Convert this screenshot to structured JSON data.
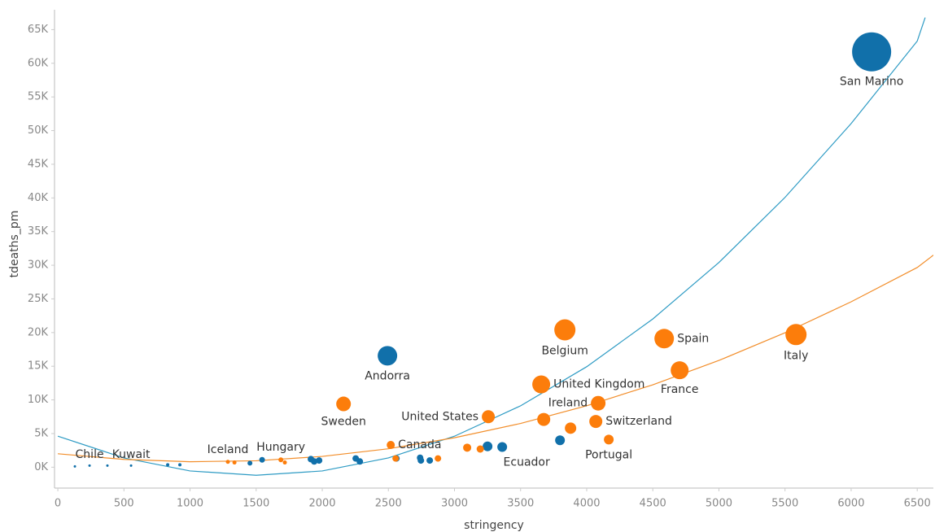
{
  "chart_data": {
    "type": "scatter",
    "xlabel": "stringency",
    "ylabel": "tdeaths_pm",
    "xlim": [
      -25,
      6622
    ],
    "ylim": [
      -3100,
      67950
    ],
    "xticks": [
      0,
      500,
      1000,
      1500,
      2000,
      2500,
      3000,
      3500,
      4000,
      4500,
      5000,
      5500,
      6000,
      6500
    ],
    "yticks": [
      {
        "value": 0,
        "label": "0K"
      },
      {
        "value": 5000,
        "label": "5K"
      },
      {
        "value": 10000,
        "label": "10K"
      },
      {
        "value": 15000,
        "label": "15K"
      },
      {
        "value": 20000,
        "label": "20K"
      },
      {
        "value": 25000,
        "label": "25K"
      },
      {
        "value": 30000,
        "label": "30K"
      },
      {
        "value": 35000,
        "label": "35K"
      },
      {
        "value": 40000,
        "label": "40K"
      },
      {
        "value": 45000,
        "label": "45K"
      },
      {
        "value": 50000,
        "label": "50K"
      },
      {
        "value": 55000,
        "label": "55K"
      },
      {
        "value": 60000,
        "label": "60K"
      },
      {
        "value": 65000,
        "label": "65K"
      }
    ],
    "trendlines": [
      {
        "color": "#2e9bc4",
        "x": [
          0,
          500,
          1000,
          1500,
          2000,
          2500,
          3000,
          3500,
          4000,
          4500,
          5000,
          5500,
          6000,
          6500,
          6560
        ],
        "y": [
          4605,
          1380,
          -555,
          -1200,
          -555,
          1380,
          4605,
          9120,
          14925,
          22020,
          30405,
          40080,
          51045,
          63300,
          66800
        ]
      },
      {
        "color": "#f28e2b",
        "x": [
          0,
          500,
          1000,
          1500,
          2000,
          2500,
          3000,
          3500,
          4000,
          4500,
          5000,
          5500,
          6000,
          6500,
          6622
        ],
        "y": [
          2000,
          1156,
          810,
          958,
          1602,
          2740,
          4374,
          6502,
          9126,
          12244,
          15858,
          19966,
          24570,
          29668,
          31500
        ]
      }
    ],
    "series": [
      {
        "color": "#1170aa",
        "x": [
          6155,
          2493,
          3798,
          3361,
          3250,
          2813,
          2740,
          2746,
          2561,
          2284,
          2253,
          1976,
          1939,
          1914,
          1545,
          1453,
          923,
          831,
          554,
          375,
          240,
          129
        ],
        "y": [
          61700,
          16550,
          4000,
          3000,
          3100,
          1000,
          1400,
          1000,
          1300,
          850,
          1300,
          1000,
          850,
          1200,
          1100,
          600,
          360,
          360,
          240,
          240,
          240,
          120
        ],
        "sizes": [
          24,
          12,
          6,
          6,
          6,
          4,
          4,
          4,
          4,
          4,
          4,
          4,
          4,
          4,
          3.5,
          3,
          2,
          2,
          1.5,
          1.5,
          1.5,
          1.5
        ],
        "labels": [
          "San Marino",
          "Andorra",
          null,
          "Ecuador",
          null,
          null,
          null,
          null,
          null,
          null,
          null,
          null,
          null,
          null,
          null,
          null,
          null,
          null,
          "Kuwait",
          null,
          "Chile",
          null
        ]
      },
      {
        "color": "#fc7d0b",
        "x": [
          5583,
          4703,
          4586,
          3835,
          3656,
          4087,
          4069,
          3675,
          3878,
          4167,
          3256,
          2161,
          2518,
          3096,
          3195,
          2875,
          2555,
          1687,
          1717,
          1336,
          1286
        ],
        "y": [
          19700,
          14400,
          19100,
          20400,
          12300,
          9500,
          6800,
          7100,
          5800,
          4100,
          7500,
          9400,
          3300,
          2900,
          2700,
          1300,
          1300,
          1100,
          700,
          700,
          800
        ],
        "sizes": [
          13,
          11,
          12,
          13,
          11,
          9,
          8,
          8,
          7,
          6,
          8,
          9,
          5,
          5,
          4.5,
          4,
          4,
          3,
          2.5,
          2.5,
          2.5
        ],
        "labels": [
          "Italy",
          "France",
          "Spain",
          "Belgium",
          "United Kingdom",
          "Ireland",
          "Switzerland",
          null,
          null,
          "Portugal",
          "United States",
          "Sweden",
          "Canada",
          null,
          null,
          null,
          null,
          "Hungary",
          null,
          null,
          "Iceland"
        ]
      }
    ]
  }
}
